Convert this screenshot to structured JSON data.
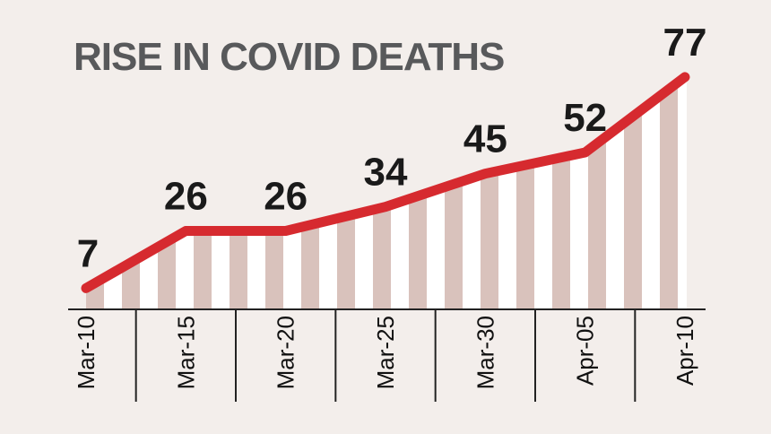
{
  "chart_data": {
    "type": "area",
    "title": "RISE IN COVID DEATHS",
    "xlabel": "",
    "ylabel": "",
    "categories": [
      "Mar-10",
      "Mar-15",
      "Mar-20",
      "Mar-25",
      "Mar-30",
      "Apr-05",
      "Apr-10"
    ],
    "values": [
      7,
      26,
      26,
      34,
      45,
      52,
      77
    ],
    "data_labels": [
      "7",
      "26",
      "26",
      "34",
      "45",
      "52",
      "77"
    ],
    "ylim": [
      0,
      85
    ],
    "grid": false,
    "legend": "none",
    "colors": {
      "background": "#f3eeeb",
      "line": "#d62a2f",
      "stripe": "#d9c2bc",
      "stripe_gap": "#ffffff",
      "axis": "#222222",
      "title": "#58595b",
      "label": "#1a1a1a"
    }
  }
}
